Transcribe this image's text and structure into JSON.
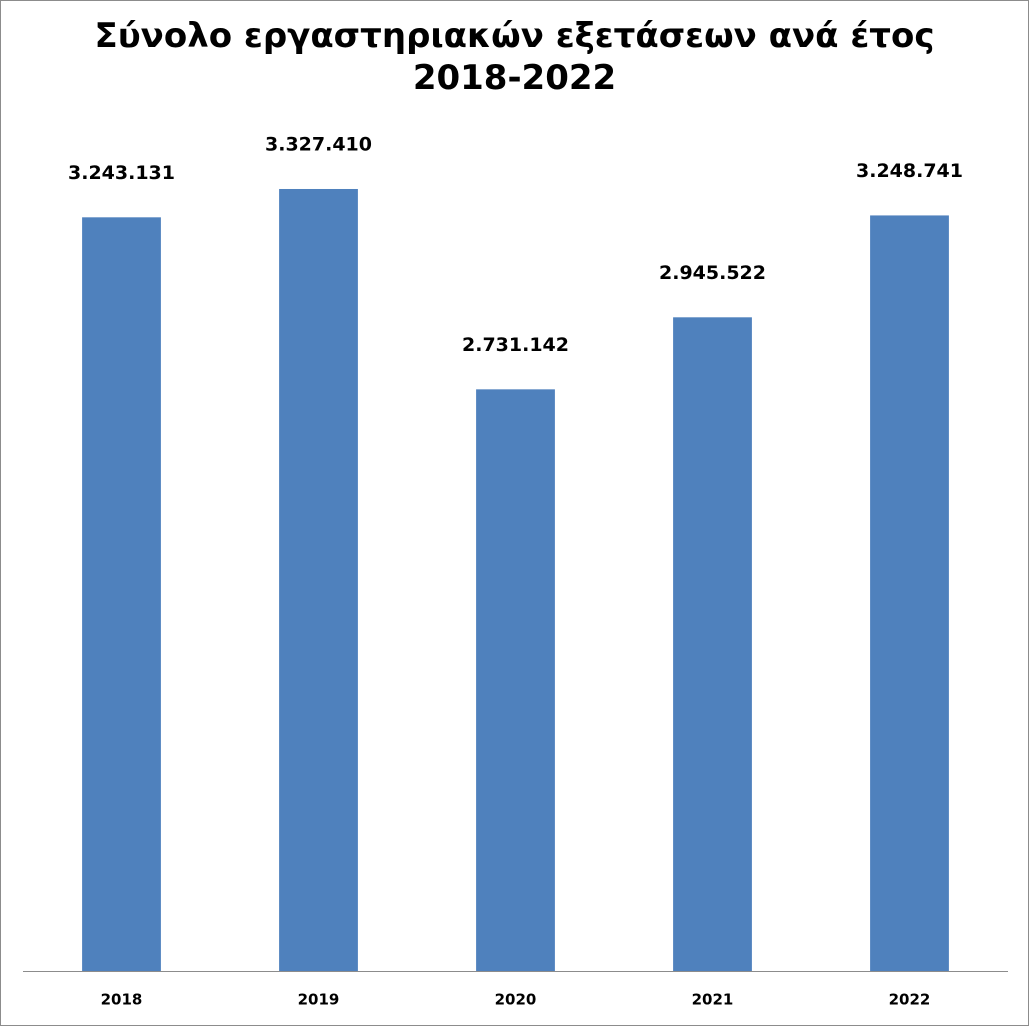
{
  "chart_data": {
    "type": "bar",
    "title": "Σύνολο εργαστηριακών εξετάσεων ανά έτος\n2018-2022",
    "categories": [
      "2018",
      "2019",
      "2020",
      "2021",
      "2022"
    ],
    "values": [
      3243131,
      3327410,
      2731142,
      2945522,
      3248741
    ],
    "value_labels": [
      "3.243.131",
      "3.327.410",
      "2.731.142",
      "2.945.522",
      "3.248.741"
    ],
    "color": "#4f81bd",
    "ylim": [
      1000000,
      3500000
    ]
  }
}
